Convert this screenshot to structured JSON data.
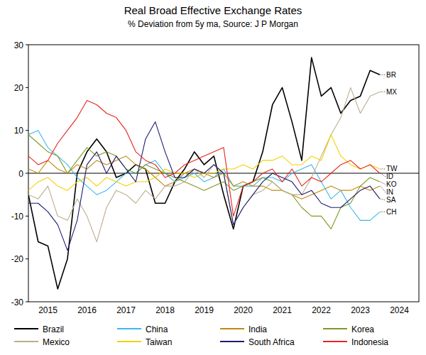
{
  "chart_data": {
    "type": "line",
    "title": "Real Broad Effective Exchange Rates",
    "subtitle": "% Deviation from 5y ma, Source: J P Morgan",
    "x": [
      2015,
      2015.25,
      2015.5,
      2015.75,
      2016,
      2016.25,
      2016.5,
      2016.75,
      2017,
      2017.25,
      2017.5,
      2017.75,
      2018,
      2018.25,
      2018.5,
      2018.75,
      2019,
      2019.25,
      2019.5,
      2019.75,
      2020,
      2020.25,
      2020.5,
      2020.75,
      2021,
      2021.25,
      2021.5,
      2021.75,
      2022,
      2022.25,
      2022.5,
      2022.75,
      2023,
      2023.25,
      2023.5,
      2023.75,
      2024
    ],
    "xlim": [
      2015,
      2025
    ],
    "xticks": [
      {
        "value": 2015.5,
        "label": "2015"
      },
      {
        "value": 2016.5,
        "label": "2016"
      },
      {
        "value": 2017.5,
        "label": "2017"
      },
      {
        "value": 2018.5,
        "label": "2018"
      },
      {
        "value": 2019.5,
        "label": "2019"
      },
      {
        "value": 2020.5,
        "label": "2020"
      },
      {
        "value": 2021.5,
        "label": "2021"
      },
      {
        "value": 2022.5,
        "label": "2022"
      },
      {
        "value": 2023.5,
        "label": "2023"
      },
      {
        "value": 2024.5,
        "label": "2024"
      }
    ],
    "ylim": [
      -30,
      30
    ],
    "yticks": [
      -30,
      -20,
      -10,
      0,
      10,
      20,
      30
    ],
    "grid": false,
    "legend": "bottom",
    "series": [
      {
        "name": "Brazil",
        "color": "#000000",
        "values": [
          -5,
          -16,
          -17,
          -27,
          -20,
          0,
          5,
          8,
          5,
          -1,
          0,
          2,
          1,
          -7,
          -7,
          -2,
          1,
          5,
          2,
          4,
          -5,
          -13,
          -3,
          -2,
          5,
          16,
          20,
          12,
          3,
          27,
          18,
          20,
          14,
          17,
          18,
          24,
          23
        ]
      },
      {
        "name": "China",
        "color": "#3cb8ec",
        "values": [
          9,
          10,
          6,
          4,
          2,
          -1,
          -3,
          -5,
          -4,
          -2,
          0,
          0,
          2,
          3,
          0,
          -2,
          -1,
          0,
          -2,
          -1,
          1,
          -3,
          -3,
          -3,
          -1,
          -1,
          -2,
          0,
          1,
          2,
          -2,
          -6,
          -4,
          -8,
          -11,
          -11,
          -9
        ]
      },
      {
        "name": "India",
        "color": "#c08a10",
        "values": [
          1,
          0,
          3,
          1,
          0,
          2,
          1,
          3,
          2,
          3,
          4,
          2,
          1,
          -1,
          -3,
          -2,
          0,
          1,
          0,
          -1,
          0,
          -3,
          -2,
          -3,
          -3,
          -4,
          -4,
          -5,
          -6,
          -5,
          -4,
          -3,
          -4,
          -4,
          -3,
          -4,
          -3
        ]
      },
      {
        "name": "Korea",
        "color": "#7d9a22",
        "values": [
          9,
          7,
          5,
          4,
          0,
          3,
          6,
          4,
          5,
          4,
          1,
          0,
          2,
          1,
          0,
          -1,
          -2,
          -3,
          -4,
          -3,
          -2,
          -4,
          -3,
          -2,
          -1,
          -2,
          -4,
          -5,
          -8,
          -10,
          -10,
          -13,
          -8,
          -7,
          -3,
          -1,
          -2
        ]
      },
      {
        "name": "Mexico",
        "color": "#bcae8c",
        "values": [
          -5,
          -6,
          -3,
          -10,
          -11,
          -6,
          -10,
          -16,
          -8,
          -4,
          -5,
          -7,
          -4,
          -6,
          -3,
          -3,
          -2,
          1,
          -1,
          2,
          0,
          -12,
          -8,
          -5,
          -4,
          -2,
          -4,
          -5,
          -5,
          -1,
          4,
          9,
          13,
          20,
          14,
          18,
          19
        ]
      },
      {
        "name": "Taiwan",
        "color": "#f4d000",
        "values": [
          -4,
          -2,
          -1,
          -3,
          -4,
          -2,
          -1,
          -3,
          -1,
          -2,
          -3,
          -2,
          -2,
          -1,
          1,
          0,
          0,
          -1,
          0,
          0,
          1,
          1,
          2,
          1,
          3,
          3,
          4,
          2,
          2,
          4,
          3,
          9,
          4,
          2,
          1,
          2,
          1
        ]
      },
      {
        "name": "South Africa",
        "color": "#1c1c70",
        "values": [
          -7,
          -7,
          -9,
          -12,
          -18,
          -11,
          2,
          5,
          0,
          4,
          1,
          -2,
          8,
          12,
          5,
          -1,
          -1,
          1,
          0,
          2,
          0,
          -12,
          -8,
          -5,
          -2,
          0,
          -1,
          -2,
          -5,
          -4,
          -7,
          -8,
          -8,
          -6,
          -4,
          -3,
          -6
        ]
      },
      {
        "name": "Indonesia",
        "color": "#e8241c",
        "values": [
          4,
          2,
          3,
          7,
          10,
          13,
          17,
          16,
          14,
          13,
          10,
          5,
          3,
          2,
          -1,
          0,
          2,
          3,
          4,
          5,
          6,
          -10,
          -3,
          -2,
          0,
          1,
          -2,
          1,
          -3,
          -1,
          -2,
          0,
          2,
          3,
          1,
          2,
          0
        ]
      }
    ],
    "annotations": [
      {
        "text": "BR",
        "series": "Brazil"
      },
      {
        "text": "MX",
        "series": "Mexico"
      },
      {
        "text": "TW",
        "series": "Taiwan"
      },
      {
        "text": "ID",
        "series": "Indonesia"
      },
      {
        "text": "KO",
        "series": "Korea"
      },
      {
        "text": "IN",
        "series": "India"
      },
      {
        "text": "SA",
        "series": "South Africa"
      },
      {
        "text": "CH",
        "series": "China"
      }
    ]
  }
}
